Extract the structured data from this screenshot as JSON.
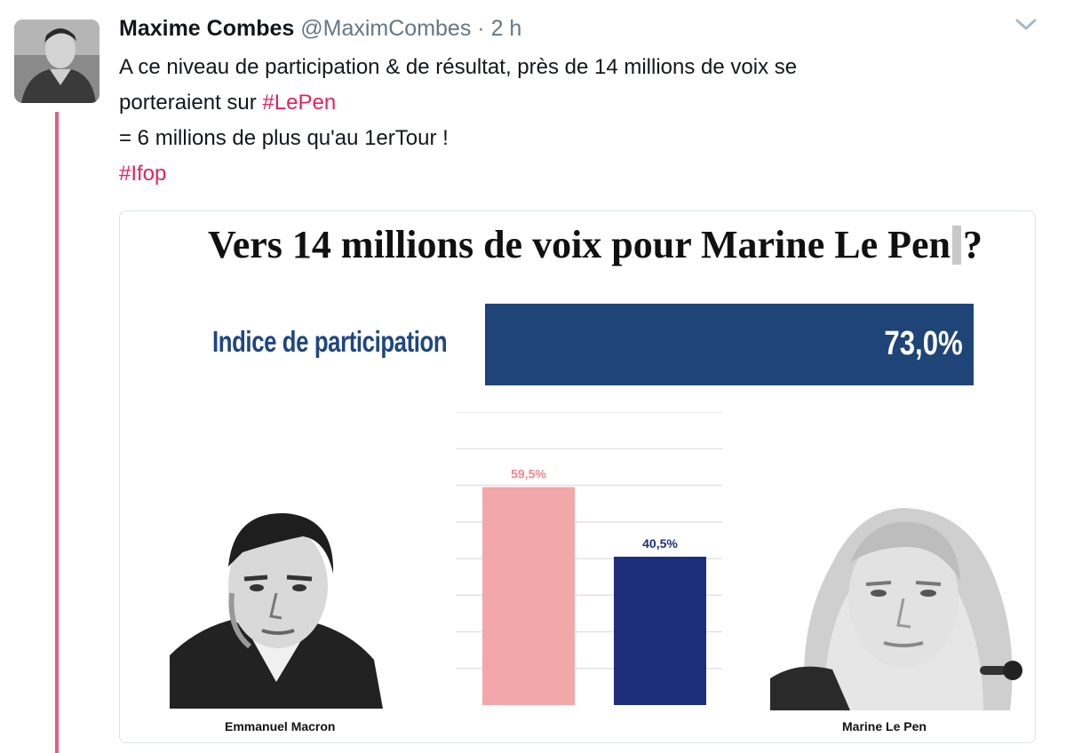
{
  "tweet": {
    "author_name": "Maxime Combes",
    "handle": "@MaximCombes",
    "separator": "·",
    "time": "2 h",
    "line1": "A ce niveau de participation & de résultat, près de 14 millions de voix se",
    "line2_prefix": "porteraient sur ",
    "line2_hashtag": "#LePen",
    "line3": "= 6 millions de plus qu'au 1erTour !",
    "line4_hashtag": "#Ifop"
  },
  "card": {
    "title_main": "Vers 14 millions de voix pour Marine Le Pen",
    "title_end": "?",
    "participation_label": "Indice de participation",
    "participation_value": "73,0%",
    "caption_left": "Emmanuel Macron",
    "caption_right": "Marine Le Pen"
  },
  "chart_data": {
    "type": "bar",
    "categories": [
      "Emmanuel Macron",
      "Marine Le Pen"
    ],
    "values": [
      59.5,
      40.5
    ],
    "value_labels": [
      "59,5%",
      "40,5%"
    ],
    "colors": [
      "#f2a7a9",
      "#1d2f7a"
    ],
    "label_colors": [
      "#f08a90",
      "#1d2f7a"
    ],
    "ylim": [
      0,
      80
    ],
    "grid": true
  },
  "colors": {
    "hashtag": "#e0245e",
    "participation_bar": "#1e4478",
    "participation_label": "#1f4680"
  }
}
